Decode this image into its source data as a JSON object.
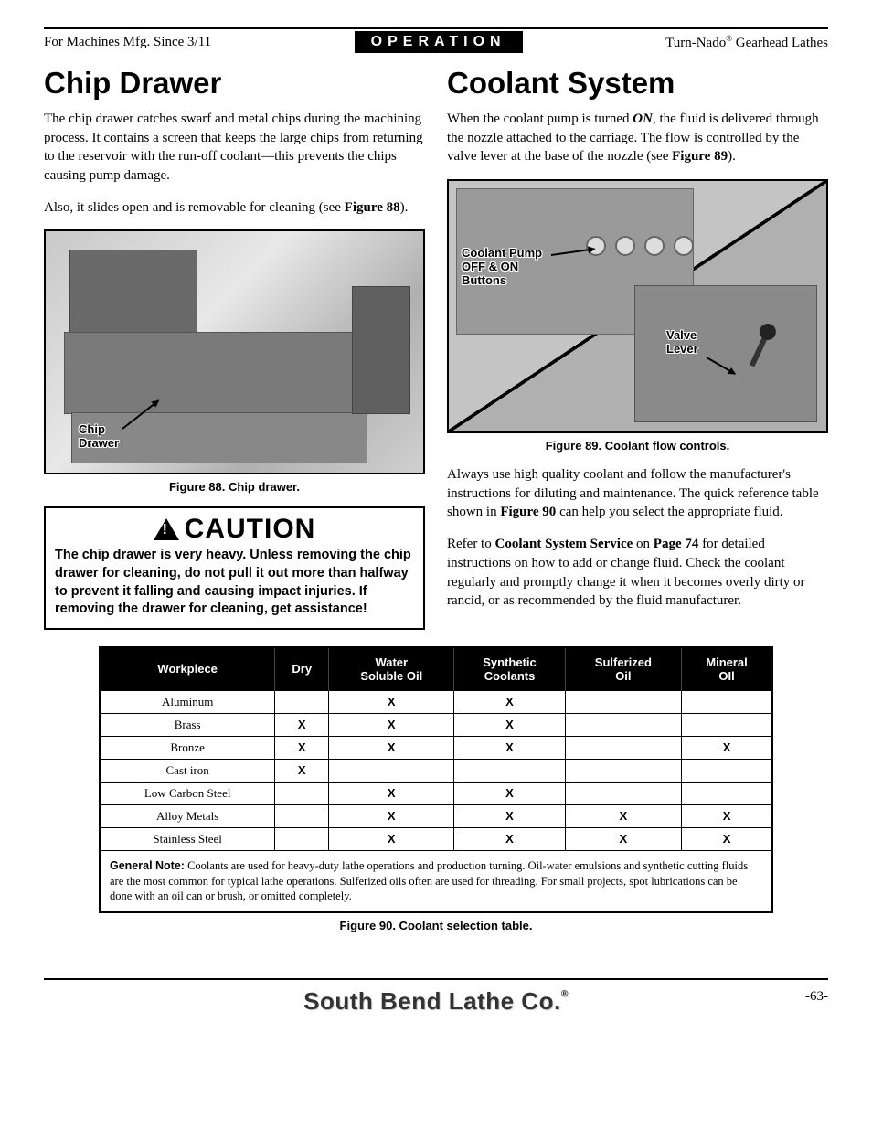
{
  "header": {
    "left": "For Machines Mfg. Since 3/11",
    "center": "OPERATION",
    "right_prefix": "Turn-Nado",
    "right_suffix": " Gearhead Lathes"
  },
  "left_col": {
    "heading": "Chip Drawer",
    "p1": "The chip drawer catches swarf and metal chips during the machining process. It contains a screen that keeps the large chips from returning to the reservoir with the run-off coolant—this prevents the chips causing pump damage.",
    "p2_a": "Also, it slides open and is removable for cleaning (see ",
    "p2_b": "Figure 88",
    "p2_c": ").",
    "fig88_label1": "Chip",
    "fig88_label2": "Drawer",
    "fig88_caption": "Figure 88. Chip drawer.",
    "caution_title": "CAUTION",
    "caution_text": "The chip drawer is very heavy. Unless removing the chip drawer for cleaning, do not pull it out more than halfway to prevent it falling and causing impact injuries. If removing the drawer for cleaning, get assistance!"
  },
  "right_col": {
    "heading": "Coolant System",
    "p1_a": "When the coolant pump is turned ",
    "p1_on": "ON",
    "p1_b": ", the fluid is delivered through the nozzle attached to the carriage. The flow is controlled by the valve lever at the base of the nozzle (see ",
    "p1_fig": "Figure 89",
    "p1_c": ").",
    "fig89_label1a": "Coolant Pump",
    "fig89_label1b": "OFF & ON",
    "fig89_label1c": "Buttons",
    "fig89_label2a": "Valve",
    "fig89_label2b": "Lever",
    "fig89_caption": "Figure 89. Coolant flow controls.",
    "p2_a": "Always use high quality coolant and follow the manufacturer's instructions for diluting and maintenance. The quick reference table shown in ",
    "p2_fig": "Figure 90",
    "p2_b": " can help you select the appropriate fluid.",
    "p3_a": "Refer to ",
    "p3_b": "Coolant System Service",
    "p3_c": " on ",
    "p3_d": "Page 74",
    "p3_e": " for detailed instructions on how to add or change fluid. Check the coolant regularly and promptly change it when it becomes overly dirty or rancid, or as recommended by the fluid manufacturer."
  },
  "table": {
    "columns": [
      "Workpiece",
      "Dry",
      "Water Soluble Oil",
      "Synthetic Coolants",
      "Sulferized Oil",
      "Mineral OIl"
    ],
    "rows": [
      {
        "w": "Aluminum",
        "cells": [
          "",
          "X",
          "X",
          "",
          ""
        ]
      },
      {
        "w": "Brass",
        "cells": [
          "X",
          "X",
          "X",
          "",
          ""
        ]
      },
      {
        "w": "Bronze",
        "cells": [
          "X",
          "X",
          "X",
          "",
          "X"
        ]
      },
      {
        "w": "Cast iron",
        "cells": [
          "X",
          "",
          "",
          "",
          ""
        ]
      },
      {
        "w": "Low Carbon Steel",
        "cells": [
          "",
          "X",
          "X",
          "",
          ""
        ]
      },
      {
        "w": "Alloy Metals",
        "cells": [
          "",
          "X",
          "X",
          "X",
          "X"
        ]
      },
      {
        "w": "Stainless Steel",
        "cells": [
          "",
          "X",
          "X",
          "X",
          "X"
        ]
      }
    ],
    "note_label": "General Note:",
    "note_text": " Coolants are used for heavy-duty lathe operations and production turning. Oil-water emulsions and synthetic cutting fluids are the most common for typical lathe operations. Sulferized oils often are used for threading. For small projects, spot lubrications can be done with an oil can or brush, or omitted completely.",
    "caption": "Figure 90. Coolant selection table."
  },
  "footer": {
    "brand": "South Bend Lathe Co.",
    "page": "-63-"
  }
}
